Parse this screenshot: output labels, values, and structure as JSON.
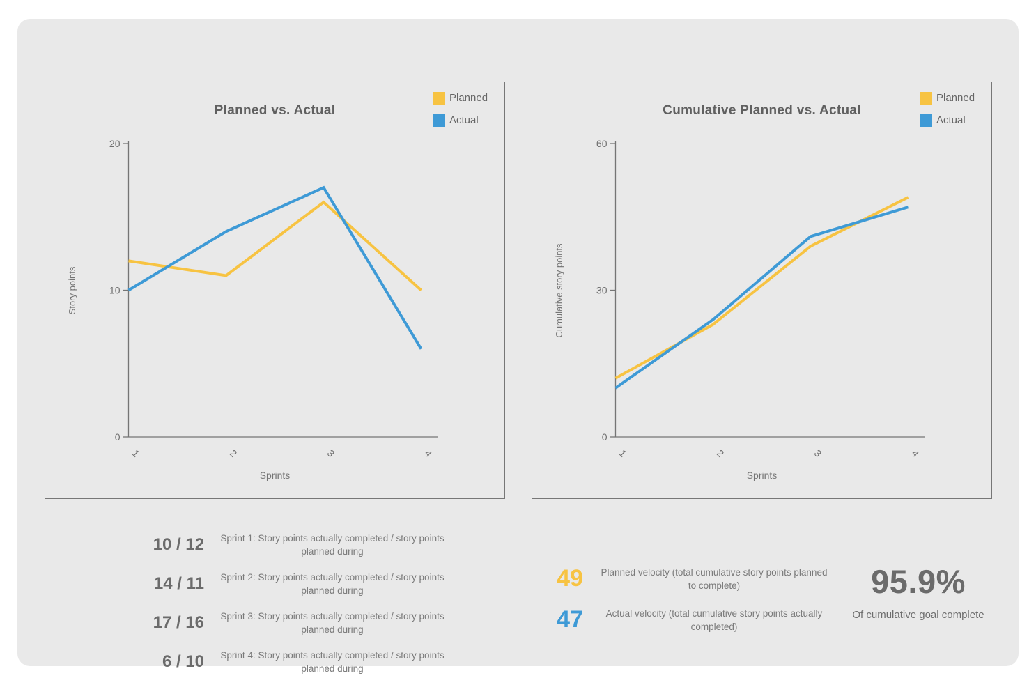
{
  "colors": {
    "planned": "#f7c342",
    "actual": "#3e9ad6",
    "axis": "#757575",
    "card_background": "#e9e9e9"
  },
  "chart_data": [
    {
      "type": "line",
      "title": "Planned vs. Actual",
      "xlabel": "Sprints",
      "ylabel": "Story points",
      "categories": [
        "1",
        "2",
        "3",
        "4"
      ],
      "ylim": [
        0,
        20
      ],
      "yticks": [
        0,
        10,
        20
      ],
      "grid": false,
      "legend_position": "top-right",
      "series": [
        {
          "name": "Planned",
          "color": "#f7c342",
          "values": [
            12,
            11,
            16,
            10
          ]
        },
        {
          "name": "Actual",
          "color": "#3e9ad6",
          "values": [
            10,
            14,
            17,
            6
          ]
        }
      ]
    },
    {
      "type": "line",
      "title": "Cumulative Planned vs. Actual",
      "xlabel": "Sprints",
      "ylabel": "Cumulative story points",
      "categories": [
        "1",
        "2",
        "3",
        "4"
      ],
      "ylim": [
        0,
        60
      ],
      "yticks": [
        0,
        30,
        60
      ],
      "grid": false,
      "legend_position": "top-right",
      "series": [
        {
          "name": "Planned",
          "color": "#f7c342",
          "values": [
            12,
            23,
            39,
            49
          ]
        },
        {
          "name": "Actual",
          "color": "#3e9ad6",
          "values": [
            10,
            24,
            41,
            47
          ]
        }
      ]
    }
  ],
  "sprint_stats": [
    {
      "value": "10 / 12",
      "description": "Sprint 1: Story points actually completed / story points planned during"
    },
    {
      "value": "14 / 11",
      "description": "Sprint 2: Story points actually completed / story points planned during"
    },
    {
      "value": "17 / 16",
      "description": "Sprint 3: Story points actually completed / story points planned during"
    },
    {
      "value": "6 / 10",
      "description": "Sprint 4: Story points actually completed / story points planned during"
    }
  ],
  "velocity": {
    "planned": {
      "value": "49",
      "description": "Planned velocity (total cumulative story points planned to complete)"
    },
    "actual": {
      "value": "47",
      "description": "Actual velocity (total cumulative story points actually completed)"
    }
  },
  "goal": {
    "percent": "95.9%",
    "caption": "Of cumulative goal complete"
  }
}
